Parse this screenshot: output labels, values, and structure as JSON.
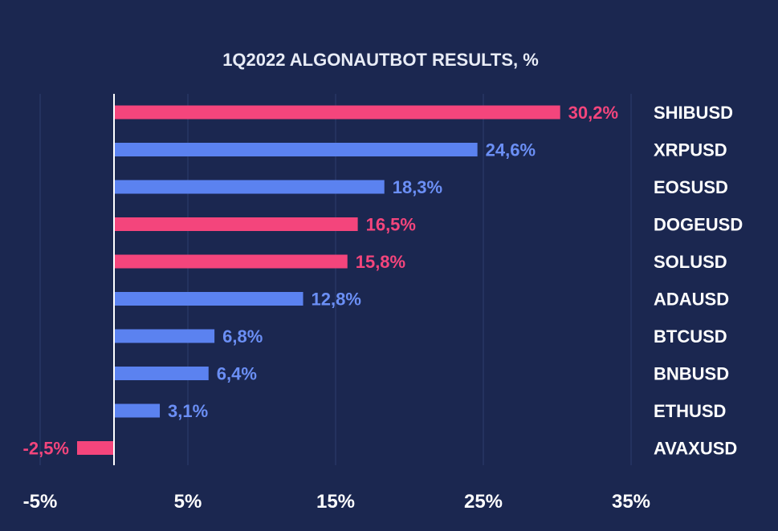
{
  "chart_data": {
    "type": "bar",
    "orientation": "horizontal",
    "title": "1Q2022 ALGONAUTBOT RESULTS, %",
    "xlim": [
      -5,
      35
    ],
    "xticks": [
      -5,
      5,
      15,
      25,
      35
    ],
    "xtick_labels": [
      "-5%",
      "5%",
      "15%",
      "25%",
      "35%"
    ],
    "grid": "vertical",
    "categories": [
      "SHIBUSD",
      "XRPUSD",
      "EOSUSD",
      "DOGEUSD",
      "SOLUSD",
      "ADAUSD",
      "BTCUSD",
      "BNBUSD",
      "ETHUSD",
      "AVAXUSD"
    ],
    "values": [
      30.2,
      24.6,
      18.3,
      16.5,
      15.8,
      12.8,
      6.8,
      6.4,
      3.1,
      -2.5
    ],
    "data_labels": [
      "30,2%",
      "24,6%",
      "18,3%",
      "16,5%",
      "15,8%",
      "12,8%",
      "6,8%",
      "6,4%",
      "3,1%",
      "-2,5%"
    ],
    "bar_colors": [
      "#f4457c",
      "#5b82f0",
      "#5b82f0",
      "#f4457c",
      "#f4457c",
      "#5b82f0",
      "#5b82f0",
      "#5b82f0",
      "#5b82f0",
      "#f4457c"
    ],
    "label_colors": [
      "#f4457c",
      "#6b8ff5",
      "#6b8ff5",
      "#f4457c",
      "#f4457c",
      "#6b8ff5",
      "#6b8ff5",
      "#6b8ff5",
      "#6b8ff5",
      "#f4457c"
    ],
    "background": "#1b2750",
    "grid_color": "#2e3d6e",
    "zero_line_color": "#ffffff"
  }
}
